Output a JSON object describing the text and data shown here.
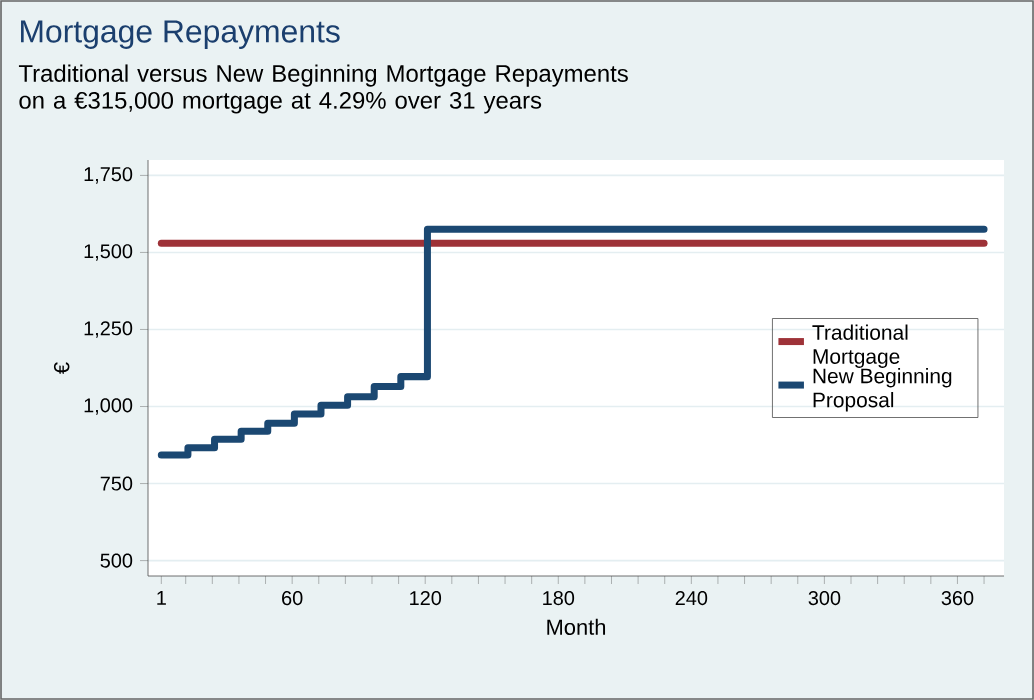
{
  "chart_data": {
    "type": "line",
    "title": "Mortgage Repayments",
    "subtitle": "Traditional versus New Beginning Mortgage Repayments on a €315,000 mortgage at 4.29% over 31 years",
    "xlabel": "Month",
    "ylabel": "€",
    "series": [
      {
        "name": "Traditional Mortgage",
        "type": "line",
        "color": "#9e3238",
        "x": [
          1,
          372
        ],
        "values": [
          1530,
          1530
        ]
      },
      {
        "name": "New Beginning Proposal",
        "type": "step",
        "color": "#1b4872",
        "x": [
          1,
          13,
          25,
          37,
          49,
          61,
          73,
          85,
          97,
          109,
          121,
          372
        ],
        "values": [
          843,
          866,
          894,
          920,
          946,
          976,
          1004,
          1032,
          1065,
          1097,
          1575,
          1575
        ]
      }
    ],
    "xlim": [
      -5,
      381
    ],
    "ylim": [
      450,
      1800
    ],
    "xticks": [
      1,
      {
        "value": 12,
        "label": null
      },
      {
        "value": 24,
        "label": null
      },
      {
        "value": 36,
        "label": null
      },
      {
        "value": 48,
        "label": null
      },
      60,
      {
        "value": 72,
        "label": null
      },
      {
        "value": 84,
        "label": null
      },
      {
        "value": 96,
        "label": null
      },
      {
        "value": 108,
        "label": null
      },
      120,
      {
        "value": 132,
        "label": null
      },
      {
        "value": 144,
        "label": null
      },
      {
        "value": 156,
        "label": null
      },
      {
        "value": 168,
        "label": null
      },
      180,
      {
        "value": 192,
        "label": null
      },
      {
        "value": 204,
        "label": null
      },
      {
        "value": 216,
        "label": null
      },
      {
        "value": 228,
        "label": null
      },
      240,
      {
        "value": 252,
        "label": null
      },
      {
        "value": 264,
        "label": null
      },
      {
        "value": 276,
        "label": null
      },
      {
        "value": 288,
        "label": null
      },
      300,
      {
        "value": 312,
        "label": null
      },
      {
        "value": 324,
        "label": null
      },
      {
        "value": 336,
        "label": null
      },
      {
        "value": 348,
        "label": null
      },
      360,
      {
        "value": 372,
        "label": null
      }
    ],
    "yticks": [
      500,
      {
        "value": 750,
        "label": "750"
      },
      {
        "value": 1000,
        "label": "1,000"
      },
      {
        "value": 1250,
        "label": "1,250"
      },
      {
        "value": 1500,
        "label": "1,500"
      },
      {
        "value": 1750,
        "label": "1,750"
      }
    ],
    "grid": "y",
    "legend": "right"
  }
}
